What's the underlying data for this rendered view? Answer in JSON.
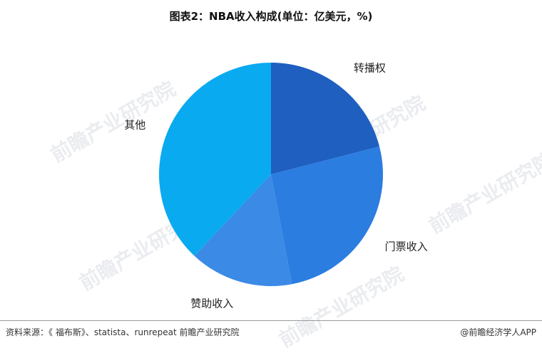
{
  "chart_data": {
    "type": "pie",
    "title": "图表2：NBA收入构成(单位：亿美元，%)",
    "categories": [
      "转播权",
      "门票收入",
      "赞助收入",
      "其他"
    ],
    "values": [
      21,
      26,
      15,
      38
    ],
    "colors": [
      "#1f5fbf",
      "#2b7de0",
      "#3a8ae6",
      "#0aaaf0"
    ]
  },
  "footer": {
    "source": "资料来源：《 福布斯》、statista、runrepeat 前瞻产业研究院",
    "brand": "@前瞻经济学人APP"
  },
  "watermark": "前瞻产业研究院"
}
